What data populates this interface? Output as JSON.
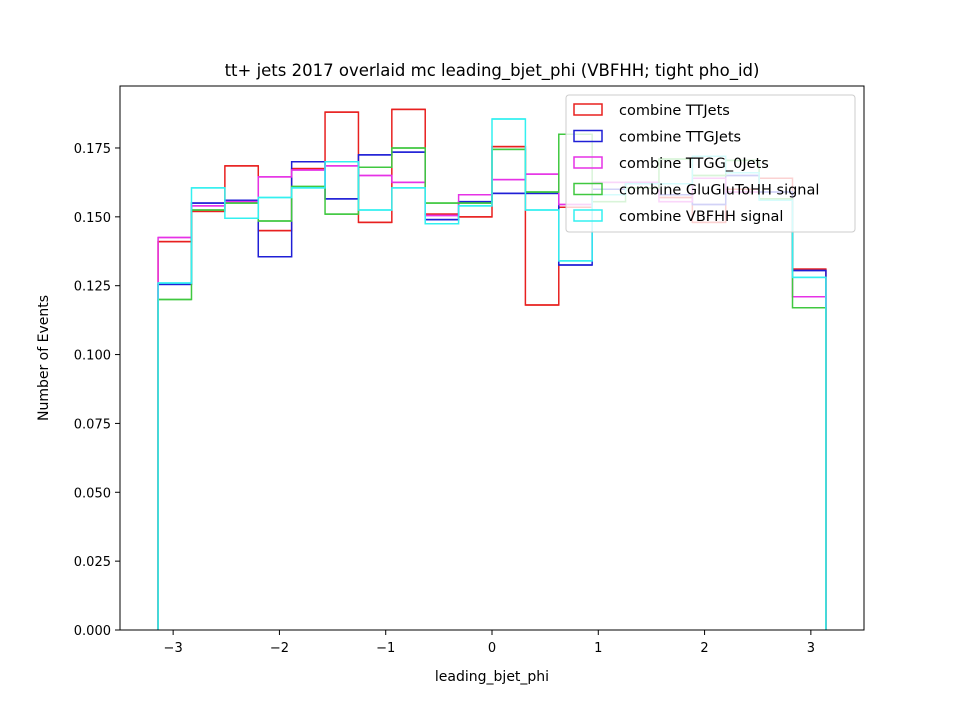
{
  "chart_data": {
    "type": "step-histogram",
    "title": "tt+ jets 2017 overlaid mc leading_bjet_phi (VBFHH; tight pho_id)",
    "xlabel": "leading_bjet_phi",
    "ylabel": "Number of Events",
    "xlim": [
      -3.5,
      3.5
    ],
    "ylim": [
      0.0,
      0.1975
    ],
    "xticks": [
      -3,
      -2,
      -1,
      0,
      1,
      2,
      3
    ],
    "xtick_labels": [
      "−3",
      "−2",
      "−1",
      "0",
      "1",
      "2",
      "3"
    ],
    "yticks": [
      0.0,
      0.025,
      0.05,
      0.075,
      0.1,
      0.125,
      0.15,
      0.175
    ],
    "ytick_labels": [
      "0.000",
      "0.025",
      "0.050",
      "0.075",
      "0.100",
      "0.125",
      "0.150",
      "0.175"
    ],
    "bin_edges": [
      -3.1416,
      -2.8274,
      -2.5133,
      -2.1991,
      -1.885,
      -1.5708,
      -1.2566,
      -0.9425,
      -0.6283,
      -0.3142,
      0.0,
      0.3142,
      0.6283,
      0.9425,
      1.2566,
      1.5708,
      1.885,
      2.1991,
      2.5133,
      2.8274,
      3.1416
    ],
    "legend_position": "upper-right",
    "series": [
      {
        "name": "combine TTJets",
        "color": "#e8201f",
        "values": [
          0.141,
          0.152,
          0.1685,
          0.145,
          0.1675,
          0.188,
          0.148,
          0.189,
          0.151,
          0.15,
          0.1755,
          0.118,
          0.1535,
          0.158,
          0.162,
          0.157,
          0.148,
          0.16,
          0.164,
          0.131
        ]
      },
      {
        "name": "combine TTGJets",
        "color": "#1f1fd6",
        "values": [
          0.1255,
          0.155,
          0.156,
          0.1355,
          0.17,
          0.1565,
          0.1725,
          0.1735,
          0.149,
          0.1555,
          0.1585,
          0.1585,
          0.1325,
          0.16,
          0.1625,
          0.158,
          0.1545,
          0.165,
          0.159,
          0.1305
        ]
      },
      {
        "name": "combine TTGG_0Jets",
        "color": "#e632e6",
        "values": [
          0.1425,
          0.154,
          0.1555,
          0.1645,
          0.167,
          0.1685,
          0.165,
          0.1625,
          0.1505,
          0.158,
          0.1635,
          0.1655,
          0.1545,
          0.1625,
          0.1625,
          0.1555,
          0.164,
          0.159,
          0.1565,
          0.121
        ]
      },
      {
        "name": "combine GluGluToHH signal",
        "color": "#40c840",
        "values": [
          0.12,
          0.1525,
          0.155,
          0.1485,
          0.161,
          0.151,
          0.168,
          0.175,
          0.155,
          0.155,
          0.1745,
          0.159,
          0.18,
          0.1555,
          0.1605,
          0.171,
          0.165,
          0.1705,
          0.1565,
          0.117
        ]
      },
      {
        "name": "combine VBFHH signal",
        "color": "#33f0f0",
        "values": [
          0.126,
          0.1605,
          0.1495,
          0.157,
          0.1605,
          0.17,
          0.1525,
          0.1605,
          0.1475,
          0.154,
          0.1855,
          0.1525,
          0.134,
          0.158,
          0.162,
          0.162,
          0.172,
          0.166,
          0.156,
          0.128
        ]
      }
    ]
  }
}
